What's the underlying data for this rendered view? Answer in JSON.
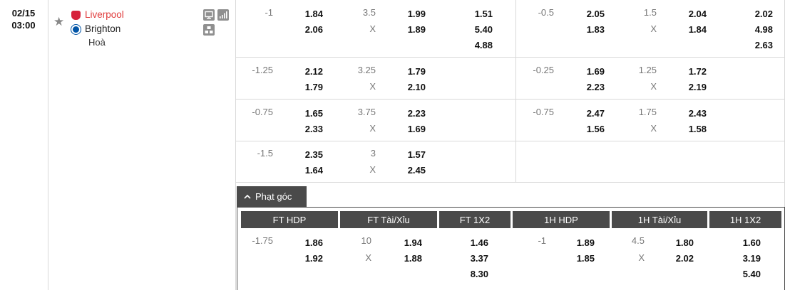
{
  "match": {
    "date": "02/15",
    "time": "03:00",
    "home": "Liverpool",
    "away": "Brighton",
    "draw_label": "Hoà"
  },
  "icons": [
    "star-icon",
    "tv-icon",
    "stats-bars-icon",
    "lineup-icon",
    "chevron-up-icon"
  ],
  "colors": {
    "home_team": "#e03b3b",
    "header_bg": "#4a4a4a"
  },
  "rows": [
    {
      "ft_hdp": {
        "line": "-1",
        "home": "1.84",
        "away": "2.06"
      },
      "ft_ou": {
        "line": "3.5",
        "x": "X",
        "over": "1.99",
        "under": "1.89"
      },
      "ft_1x2": [
        "1.51",
        "5.40",
        "4.88"
      ],
      "h1_hdp": {
        "line": "-0.5",
        "home": "2.05",
        "away": "1.83"
      },
      "h1_ou": {
        "line": "1.5",
        "x": "X",
        "over": "2.04",
        "under": "1.84"
      },
      "h1_1x2": [
        "2.02",
        "4.98",
        "2.63"
      ]
    },
    {
      "ft_hdp": {
        "line": "-1.25",
        "home": "2.12",
        "away": "1.79"
      },
      "ft_ou": {
        "line": "3.25",
        "x": "X",
        "over": "1.79",
        "under": "2.10"
      },
      "h1_hdp": {
        "line": "-0.25",
        "home": "1.69",
        "away": "2.23"
      },
      "h1_ou": {
        "line": "1.25",
        "x": "X",
        "over": "1.72",
        "under": "2.19"
      }
    },
    {
      "ft_hdp": {
        "line": "-0.75",
        "home": "1.65",
        "away": "2.33"
      },
      "ft_ou": {
        "line": "3.75",
        "x": "X",
        "over": "2.23",
        "under": "1.69"
      },
      "h1_hdp": {
        "line": "-0.75",
        "home": "2.47",
        "away": "1.56"
      },
      "h1_ou": {
        "line": "1.75",
        "x": "X",
        "over": "2.43",
        "under": "1.58"
      }
    },
    {
      "ft_hdp": {
        "line": "-1.5",
        "home": "2.35",
        "away": "1.64"
      },
      "ft_ou": {
        "line": "3",
        "x": "X",
        "over": "1.57",
        "under": "2.45"
      }
    }
  ],
  "corners": {
    "tab_label": "Phạt góc",
    "headers": [
      "FT HDP",
      "FT Tài/Xỉu",
      "FT 1X2",
      "1H HDP",
      "1H Tài/Xỉu",
      "1H 1X2"
    ],
    "ft_hdp": {
      "line": "-1.75",
      "home": "1.86",
      "away": "1.92"
    },
    "ft_ou": {
      "line": "10",
      "x": "X",
      "over": "1.94",
      "under": "1.88"
    },
    "ft_1x2": [
      "1.46",
      "3.37",
      "8.30"
    ],
    "h1_hdp": {
      "line": "-1",
      "home": "1.89",
      "away": "1.85"
    },
    "h1_ou": {
      "line": "4.5",
      "x": "X",
      "over": "1.80",
      "under": "2.02"
    },
    "h1_1x2": [
      "1.60",
      "3.19",
      "5.40"
    ]
  }
}
